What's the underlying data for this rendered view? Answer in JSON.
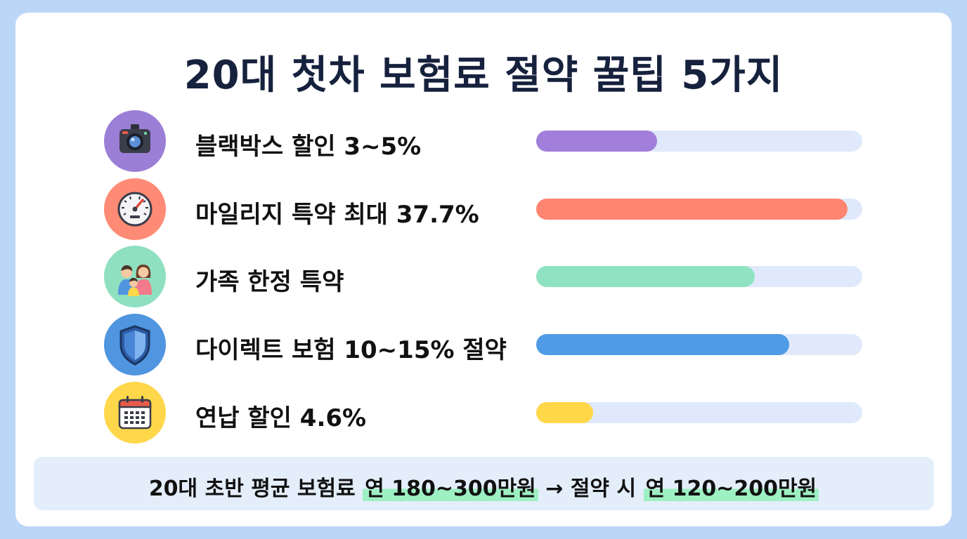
{
  "title": "20대 첫차 보험료 절약 꿀팁 5가지",
  "items": [
    {
      "label": "블랙박스 할인 3~5%",
      "icon": "dashcam-icon",
      "color": "#a07ed9",
      "circle": "#9b7fd6",
      "progress": 0.37
    },
    {
      "label": "마일리지 특약 최대 37.7%",
      "icon": "speedometer-icon",
      "color": "#ff8570",
      "circle": "#ff8a75",
      "progress": 0.955
    },
    {
      "label": "가족 한정 특약",
      "icon": "family-icon",
      "color": "#8fe3c2",
      "circle": "#8fe0c0",
      "progress": 0.67
    },
    {
      "label": "다이렉트 보험 10~15% 절약",
      "icon": "shield-icon",
      "color": "#4f9be6",
      "circle": "#4f95e0",
      "progress": 0.775
    },
    {
      "label": "연납 할인 4.6%",
      "icon": "calendar-icon",
      "color": "#ffd84a",
      "circle": "#ffd74a",
      "progress": 0.175
    }
  ],
  "footer": {
    "prefix": "20대 초반 평균 보험료",
    "highlight1": "연 180~300만원",
    "middle": "→ 절약 시",
    "highlight2": "연 120~200만원"
  }
}
